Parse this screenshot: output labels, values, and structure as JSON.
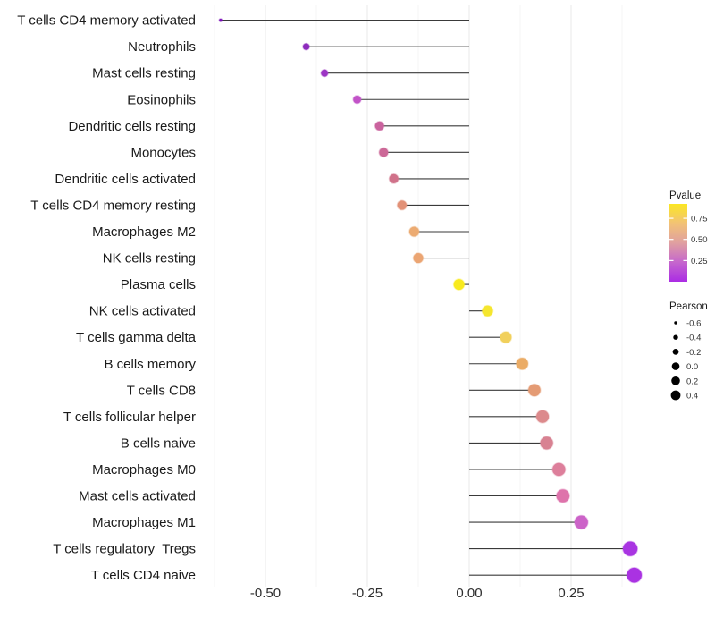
{
  "chart_data": {
    "type": "lollipop",
    "title": "",
    "xlabel": "",
    "ylabel": "",
    "x_axis": {
      "xlim": [
        -0.66,
        0.48
      ],
      "ticks": [
        -0.5,
        -0.25,
        0.0,
        0.25
      ],
      "tick_labels": [
        "-0.50",
        "-0.25",
        "0.00",
        "0.25"
      ],
      "minor_ticks": [
        -0.625,
        -0.375,
        -0.125,
        0.125,
        0.375
      ],
      "grid": "vertical-only"
    },
    "points": [
      {
        "label": "T cells CD4 memory activated",
        "pearson": -0.61,
        "color": "#7a0fb8",
        "radius": 1.6
      },
      {
        "label": "Neutrophils",
        "pearson": -0.4,
        "color": "#8d2abc",
        "radius": 3.6
      },
      {
        "label": "Mast cells resting",
        "pearson": -0.355,
        "color": "#9c35c4",
        "radius": 3.9
      },
      {
        "label": "Eosinophils",
        "pearson": -0.275,
        "color": "#c253c8",
        "radius": 4.4
      },
      {
        "label": "Dendritic cells resting",
        "pearson": -0.22,
        "color": "#ca639e",
        "radius": 5.0
      },
      {
        "label": "Monocytes",
        "pearson": -0.21,
        "color": "#cc6897",
        "radius": 5.0
      },
      {
        "label": "Dendritic cells activated",
        "pearson": -0.185,
        "color": "#d0728a",
        "radius": 5.1
      },
      {
        "label": "T cells CD4 memory resting",
        "pearson": -0.165,
        "color": "#e29177",
        "radius": 5.2
      },
      {
        "label": "Macrophages M2",
        "pearson": -0.135,
        "color": "#ecab72",
        "radius": 5.5
      },
      {
        "label": "NK cells resting",
        "pearson": -0.125,
        "color": "#eba573",
        "radius": 5.5
      },
      {
        "label": "Plasma cells",
        "pearson": -0.025,
        "color": "#f8ea1e",
        "radius": 6.0
      },
      {
        "label": "NK cells activated",
        "pearson": 0.045,
        "color": "#f5e62e",
        "radius": 6.0
      },
      {
        "label": "T cells gamma delta",
        "pearson": 0.09,
        "color": "#f1d05c",
        "radius": 6.3
      },
      {
        "label": "B cells memory",
        "pearson": 0.13,
        "color": "#ebac66",
        "radius": 6.6
      },
      {
        "label": "T cells CD8",
        "pearson": 0.16,
        "color": "#e49b74",
        "radius": 6.8
      },
      {
        "label": "T cells follicular helper",
        "pearson": 0.18,
        "color": "#dc8a8c",
        "radius": 7.0
      },
      {
        "label": "B cells naive",
        "pearson": 0.19,
        "color": "#d88292",
        "radius": 7.1
      },
      {
        "label": "Macrophages M0",
        "pearson": 0.22,
        "color": "#dd7f9b",
        "radius": 7.2
      },
      {
        "label": "Mast cells activated",
        "pearson": 0.23,
        "color": "#de73ab",
        "radius": 7.3
      },
      {
        "label": "Macrophages M1",
        "pearson": 0.275,
        "color": "#cc63c8",
        "radius": 7.5
      },
      {
        "label": "T cells regulatory  Tregs",
        "pearson": 0.395,
        "color": "#a935e2",
        "radius": 8.1
      },
      {
        "label": "T cells CD4 naive",
        "pearson": 0.405,
        "color": "#aa32e2",
        "radius": 8.3
      }
    ],
    "legend_pvalue": {
      "title": "Pvalue",
      "tick_labels": [
        "0.75",
        "0.50",
        "0.25"
      ],
      "tick_values": [
        0.75,
        0.5,
        0.25
      ],
      "value_range": [
        0.0,
        0.92
      ],
      "gradient_top_to_bottom": [
        "#fbe723",
        "#f2c276",
        "#e0a0a0",
        "#c566cd",
        "#ab2ce4"
      ]
    },
    "legend_pearson": {
      "title": "Pearson",
      "entries": [
        {
          "label": "-0.6",
          "radius": 1.7
        },
        {
          "label": "-0.4",
          "radius": 2.7
        },
        {
          "label": "-0.2",
          "radius": 3.4
        },
        {
          "label": "0.0",
          "radius": 4.3
        },
        {
          "label": "0.2",
          "radius": 4.8
        },
        {
          "label": "0.4",
          "radius": 5.4
        }
      ]
    },
    "colors": {
      "stem": "#3a3a3a",
      "grid_major": "#e9e9e9",
      "grid_minor": "#f4f4f4",
      "axis_text": "#1a1a1a",
      "tick_text": "#2e2e2e",
      "legend_title_text": "#1a1a1a",
      "legend_label_text": "#333333",
      "legend_key_dot": "#000000",
      "background": "#ffffff"
    }
  }
}
